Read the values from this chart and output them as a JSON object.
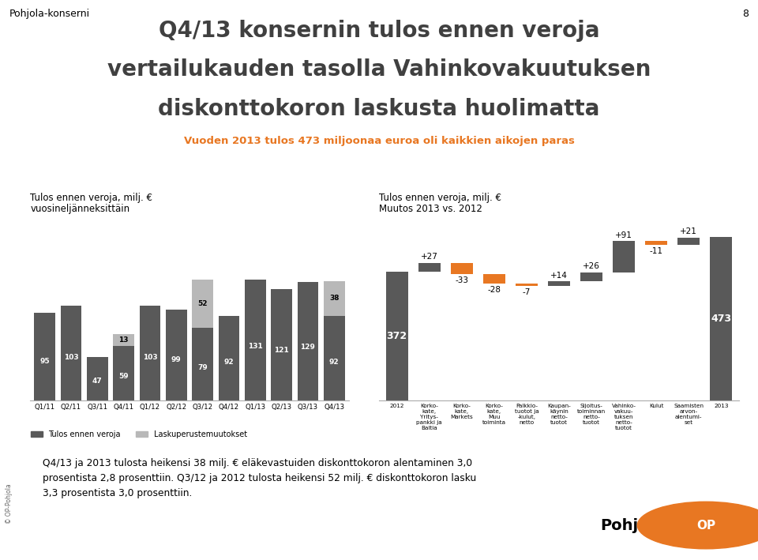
{
  "title_line1": "Q4/13 konsernin tulos ennen veroja",
  "title_line2": "vertailukauden tasolla Vahinkovakuutuksen",
  "title_line3": "diskonttokoron laskusta huolimatta",
  "subtitle": "Vuoden 2013 tulos 473 miljoonaa euroa oli kaikkien aikojen paras",
  "header": "Pohjola-konserni",
  "page_num": "8",
  "left_title_line1": "Tulos ennen veroja, milj. €",
  "left_title_line2": "vuosineljänneksittäin",
  "right_title_line1": "Tulos ennen veroja, milj. €",
  "right_title_line2": "Muutos 2013 vs. 2012",
  "bar_labels": [
    "Q1/11",
    "Q2/11",
    "Q3/11",
    "Q4/11",
    "Q1/12",
    "Q2/12",
    "Q3/12",
    "Q4/12",
    "Q1/13",
    "Q2/13",
    "Q3/13",
    "Q4/13"
  ],
  "bar_values": [
    95,
    103,
    47,
    59,
    103,
    99,
    79,
    92,
    131,
    121,
    129,
    92
  ],
  "bar_extra": [
    0,
    0,
    0,
    13,
    0,
    0,
    52,
    0,
    0,
    0,
    0,
    38
  ],
  "bar_color_dark": "#595959",
  "bar_color_light": "#b8b8b8",
  "wf_labels": [
    "2012",
    "Korko-\nkate,\nYritys-\npankki ja\nBaltia",
    "Korko-\nkate,\nMarkets",
    "Korko-\nkate,\nMuu\ntoiminta",
    "Palkkio-\ntuotot ja\n-kulut,\nnetto",
    "Kaupan-\nkäynin\nnetto-\ntuotot",
    "Sijoitus-\ntoiminnan\nnetto-\ntuotot",
    "Vahinko-\nvakuu-\ntuksen\nnetto-\ntuotot",
    "Kulut",
    "Saamisten\narvon-\nalentumi-\nset",
    "2013"
  ],
  "wf_values": [
    372,
    27,
    -33,
    -28,
    -7,
    14,
    26,
    91,
    -11,
    21,
    473
  ],
  "wf_color_pos": "#595959",
  "wf_color_neg": "#e87722",
  "wf_color_total": "#595959",
  "legend_dark": "Tulos ennen veroja",
  "legend_light": "Laskuperustemuutokset",
  "footer_text": "Q4/13 ja 2013 tulosta heikensi 38 milj. € eläkevastuiden diskonttokoron alentaminen 3,0\nprosentista 2,8 prosenttiin. Q3/12 ja 2012 tulosta heikensi 52 milj. € diskonttokoron lasku\n3,3 prosentista 3,0 prosenttiin.",
  "bg_color": "#ffffff",
  "footer_bg": "#e8e8e8"
}
